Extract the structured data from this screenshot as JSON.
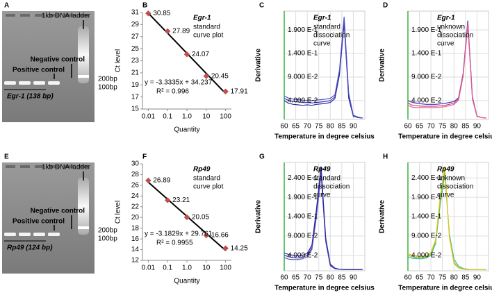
{
  "gels": [
    {
      "panel": "A",
      "ladder": "1kb DNA ladder",
      "negative": "Negative control",
      "positive": "Positive control",
      "marker_200": "200bp",
      "marker_100": "100bp",
      "product": "Egr-1 (138 bp)"
    },
    {
      "panel": "E",
      "ladder": "1kb DNA ladder",
      "negative": "Negative control",
      "positive": "Positive control",
      "marker_200": "200bp",
      "marker_100": "100bp",
      "product": "Rp49 (124 bp)"
    }
  ],
  "chart_data": [
    {
      "type": "scatter",
      "panel": "B",
      "title": "Egr-1",
      "subtitle": [
        "standard",
        "curve plot"
      ],
      "xlabel": "Quantity",
      "ylabel": "Ct  level",
      "xscale": "log",
      "x": [
        0.01,
        0.1,
        1,
        10,
        100
      ],
      "values": [
        30.85,
        27.89,
        24.07,
        20.45,
        17.91
      ],
      "color": "#c0504d",
      "xlim": [
        0.005,
        200
      ],
      "xticks": [
        0.01,
        0.1,
        {
          "value": 1,
          "label": "1.0"
        },
        10,
        100
      ],
      "ylim": [
        15,
        31
      ],
      "yticks": [
        15,
        17,
        19,
        21,
        23,
        25,
        27,
        29,
        31
      ],
      "equation": "y = -3.3335x + 34.237",
      "r_squared": "R² = 0.996"
    },
    {
      "type": "line",
      "panel": "C",
      "title": "Egr-1",
      "subtitle": [
        "standard",
        "dissociation",
        "curve"
      ],
      "xlabel": "Temperature in  degree celsius",
      "ylabel": "Derivative",
      "grid": true,
      "x": [
        60,
        62,
        64,
        66,
        68,
        70,
        72,
        74,
        76,
        78,
        80,
        82,
        84,
        86,
        88,
        90,
        92,
        94
      ],
      "xlim": [
        60,
        95
      ],
      "xticks": [
        60,
        65,
        70,
        75,
        80,
        85,
        90
      ],
      "ylim": [
        0,
        0.23
      ],
      "yticks": [
        {
          "value": 0.04,
          "label": "4.000 E-2"
        },
        {
          "value": 0.09,
          "label": "9.000 E-2"
        },
        {
          "value": 0.14,
          "label": "1.400 E-1"
        },
        {
          "value": 0.19,
          "label": "1.900 E-1"
        }
      ],
      "series": [
        {
          "color": "#3c3cb4",
          "values": [
            0.045,
            0.04,
            0.038,
            0.037,
            0.036,
            0.036,
            0.035,
            0.036,
            0.037,
            0.038,
            0.04,
            0.048,
            0.1,
            0.212,
            0.05,
            0.008,
            0.004,
            0.003
          ]
        },
        {
          "color": "#2a2a9a",
          "values": [
            0.04,
            0.034,
            0.032,
            0.031,
            0.03,
            0.031,
            0.03,
            0.032,
            0.033,
            0.034,
            0.036,
            0.044,
            0.095,
            0.205,
            0.045,
            0.007,
            0.004,
            0.003
          ]
        },
        {
          "color": "#5050c8",
          "values": [
            0.05,
            0.045,
            0.043,
            0.042,
            0.041,
            0.04,
            0.04,
            0.041,
            0.042,
            0.043,
            0.045,
            0.052,
            0.105,
            0.218,
            0.055,
            0.009,
            0.005,
            0.003
          ]
        }
      ]
    },
    {
      "type": "line",
      "panel": "D",
      "title": "Egr-1",
      "subtitle": [
        "unknown",
        "dissociation",
        "curve"
      ],
      "xlabel": "Temperature in  degree celsius",
      "ylabel": "Derivative",
      "grid": true,
      "x": [
        60,
        62,
        64,
        66,
        68,
        70,
        72,
        74,
        76,
        78,
        80,
        82,
        84,
        86,
        88,
        90,
        92,
        94
      ],
      "xlim": [
        60,
        95
      ],
      "xticks": [
        60,
        65,
        70,
        75,
        80,
        85,
        90
      ],
      "ylim": [
        0,
        0.23
      ],
      "yticks": [
        {
          "value": 0.04,
          "label": "4.000 E-2"
        },
        {
          "value": 0.09,
          "label": "9.000 E-2"
        },
        {
          "value": 0.14,
          "label": "1.400 E-1"
        },
        {
          "value": 0.19,
          "label": "1.900 E-1"
        }
      ],
      "series": [
        {
          "color": "#3c3cb4",
          "values": [
            0.04,
            0.036,
            0.034,
            0.033,
            0.032,
            0.032,
            0.032,
            0.033,
            0.034,
            0.036,
            0.038,
            0.046,
            0.098,
            0.21,
            0.048,
            0.007,
            0.004,
            0.003
          ]
        },
        {
          "color": "#d0407a",
          "values": [
            0.035,
            0.03,
            0.029,
            0.028,
            0.028,
            0.028,
            0.028,
            0.029,
            0.03,
            0.032,
            0.035,
            0.044,
            0.096,
            0.205,
            0.046,
            0.007,
            0.004,
            0.003
          ]
        },
        {
          "color": "#e0609a",
          "values": [
            0.03,
            0.026,
            0.025,
            0.025,
            0.025,
            0.025,
            0.025,
            0.026,
            0.027,
            0.029,
            0.032,
            0.041,
            0.092,
            0.2,
            0.043,
            0.006,
            0.004,
            0.003
          ]
        }
      ]
    },
    {
      "type": "scatter",
      "panel": "F",
      "title": "Rp49",
      "subtitle": [
        "standard",
        "curve plot"
      ],
      "xlabel": "Quantity",
      "ylabel": "Ct  level",
      "xscale": "log",
      "x": [
        0.01,
        0.1,
        1,
        10,
        100
      ],
      "values": [
        26.89,
        23.21,
        20.05,
        16.66,
        14.25
      ],
      "color": "#c0504d",
      "xlim": [
        0.005,
        200
      ],
      "xticks": [
        0.01,
        0.1,
        {
          "value": 1,
          "label": "1.0"
        },
        10,
        100
      ],
      "ylim": [
        12,
        30
      ],
      "yticks": [
        12,
        14,
        16,
        18,
        20,
        22,
        24,
        26,
        28,
        30
      ],
      "equation": "y = -3.1829x + 29.761",
      "r_squared": "R² = 0.9955"
    },
    {
      "type": "line",
      "panel": "G",
      "title": "Rp49",
      "subtitle": [
        "standard",
        "dissociation",
        "curve"
      ],
      "xlabel": "Temperature in  degree celsius",
      "ylabel": "Derivative",
      "grid": true,
      "x": [
        60,
        62,
        64,
        66,
        68,
        70,
        72,
        74,
        76,
        78,
        80,
        82,
        84,
        86,
        88,
        90,
        92,
        94
      ],
      "xlim": [
        60,
        95
      ],
      "xticks": [
        60,
        65,
        70,
        75,
        80,
        85,
        90
      ],
      "ylim": [
        0,
        0.28
      ],
      "yticks": [
        {
          "value": 0.04,
          "label": "4.000 E-2"
        },
        {
          "value": 0.09,
          "label": "9.000 E-2"
        },
        {
          "value": 0.14,
          "label": "1.400 E-1"
        },
        {
          "value": 0.19,
          "label": "1.900 E-1"
        },
        {
          "value": 0.24,
          "label": "2.400 E-1"
        }
      ],
      "series": [
        {
          "color": "#3c3cb4",
          "values": [
            0.04,
            0.036,
            0.034,
            0.033,
            0.035,
            0.04,
            0.06,
            0.15,
            0.26,
            0.08,
            0.015,
            0.006,
            0.004,
            0.003,
            0.003,
            0.003,
            0.003,
            0.003
          ]
        },
        {
          "color": "#5a4cc0",
          "values": [
            0.034,
            0.03,
            0.029,
            0.029,
            0.031,
            0.036,
            0.055,
            0.14,
            0.25,
            0.075,
            0.013,
            0.005,
            0.004,
            0.003,
            0.003,
            0.003,
            0.003,
            0.003
          ]
        },
        {
          "color": "#2a2a9a",
          "values": [
            0.046,
            0.042,
            0.04,
            0.039,
            0.04,
            0.045,
            0.066,
            0.16,
            0.27,
            0.085,
            0.017,
            0.007,
            0.004,
            0.003,
            0.003,
            0.003,
            0.003,
            0.003
          ]
        }
      ]
    },
    {
      "type": "line",
      "panel": "H",
      "title": "Rp49",
      "subtitle": [
        "unknown",
        "dissociation",
        "curve"
      ],
      "xlabel": "Temperature in  degree celsius",
      "ylabel": "Derivative",
      "grid": true,
      "x": [
        60,
        62,
        64,
        66,
        68,
        70,
        72,
        74,
        76,
        78,
        80,
        82,
        84,
        86,
        88,
        90,
        92,
        94
      ],
      "xlim": [
        60,
        95
      ],
      "xticks": [
        60,
        65,
        70,
        75,
        80,
        85,
        90
      ],
      "ylim": [
        0,
        0.28
      ],
      "yticks": [
        {
          "value": 0.04,
          "label": "4.000 E-2"
        },
        {
          "value": 0.09,
          "label": "9.000 E-2"
        },
        {
          "value": 0.14,
          "label": "1.400 E-1"
        },
        {
          "value": 0.19,
          "label": "1.900 E-1"
        },
        {
          "value": 0.24,
          "label": "2.400 E-1"
        }
      ],
      "series": [
        {
          "color": "#2fb8a8",
          "values": [
            0.036,
            0.032,
            0.031,
            0.031,
            0.033,
            0.04,
            0.07,
            0.17,
            0.25,
            0.095,
            0.03,
            0.012,
            0.006,
            0.004,
            0.003,
            0.003,
            0.003,
            0.003
          ]
        },
        {
          "color": "#8cc63f",
          "values": [
            0.04,
            0.036,
            0.034,
            0.034,
            0.036,
            0.044,
            0.075,
            0.18,
            0.26,
            0.09,
            0.022,
            0.008,
            0.005,
            0.003,
            0.003,
            0.003,
            0.003,
            0.003
          ]
        },
        {
          "color": "#e6c619",
          "values": [
            0.044,
            0.04,
            0.038,
            0.037,
            0.039,
            0.047,
            0.08,
            0.19,
            0.27,
            0.085,
            0.018,
            0.007,
            0.004,
            0.003,
            0.003,
            0.003,
            0.003,
            0.003
          ]
        }
      ]
    }
  ]
}
